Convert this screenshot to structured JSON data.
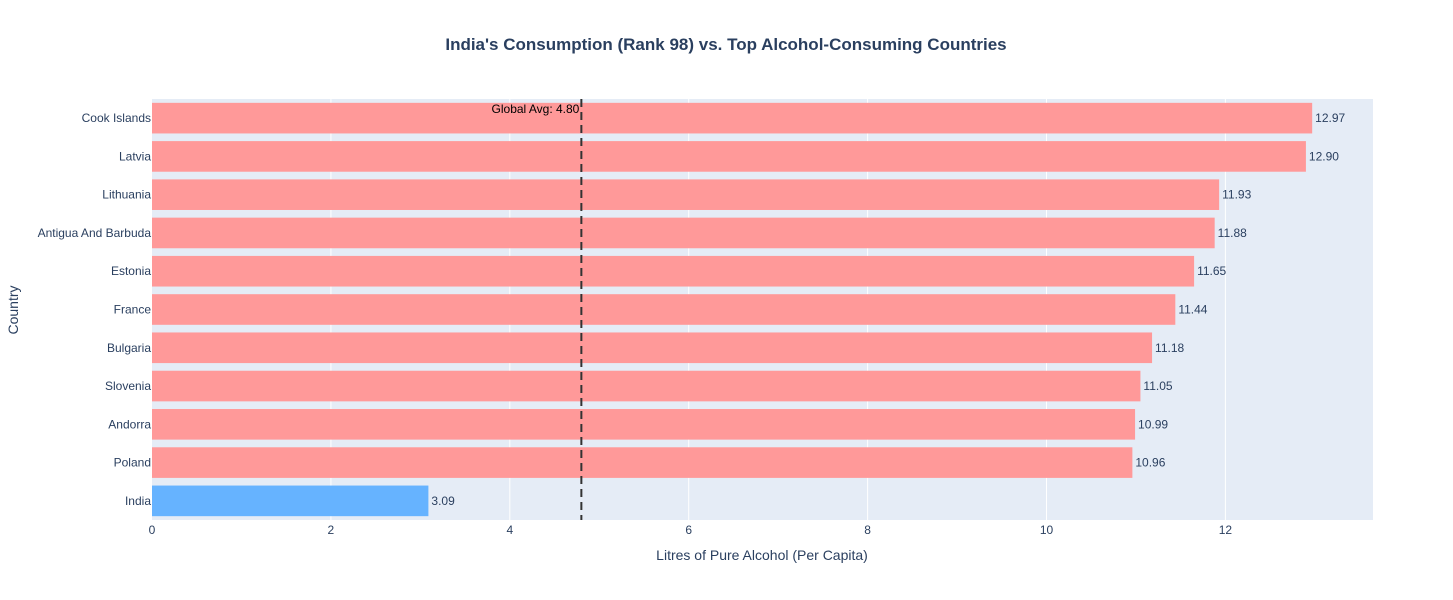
{
  "chart_data": {
    "type": "bar",
    "orientation": "horizontal",
    "title": "India's Consumption (Rank 98) vs. Top Alcohol-Consuming Countries",
    "xlabel": "Litres of Pure Alcohol (Per Capita)",
    "ylabel": "Country",
    "xlim": [
      0,
      13.65
    ],
    "xticks": [
      0,
      2,
      4,
      6,
      8,
      10,
      12
    ],
    "grid": true,
    "categories": [
      "Cook Islands",
      "Latvia",
      "Lithuania",
      "Antigua And Barbuda",
      "Estonia",
      "France",
      "Bulgaria",
      "Slovenia",
      "Andorra",
      "Poland",
      "India"
    ],
    "values": [
      12.97,
      12.9,
      11.93,
      11.88,
      11.65,
      11.44,
      11.18,
      11.05,
      10.99,
      10.96,
      3.09
    ],
    "value_labels": [
      "12.97",
      "12.90",
      "11.93",
      "11.88",
      "11.65",
      "11.44",
      "11.18",
      "11.05",
      "10.99",
      "10.96",
      "3.09"
    ],
    "bar_colors": [
      "#ff9999",
      "#ff9999",
      "#ff9999",
      "#ff9999",
      "#ff9999",
      "#ff9999",
      "#ff9999",
      "#ff9999",
      "#ff9999",
      "#ff9999",
      "#66b3ff"
    ],
    "reference_line": {
      "value": 4.8,
      "label": "Global Avg: 4.80",
      "style": "dashed",
      "color": "#333333"
    }
  },
  "colors": {
    "plot_background": "#e5ecf6",
    "grid": "#ffffff",
    "text": "#2a3f5f",
    "highlight_bar": "#66b3ff",
    "default_bar": "#ff9999"
  }
}
